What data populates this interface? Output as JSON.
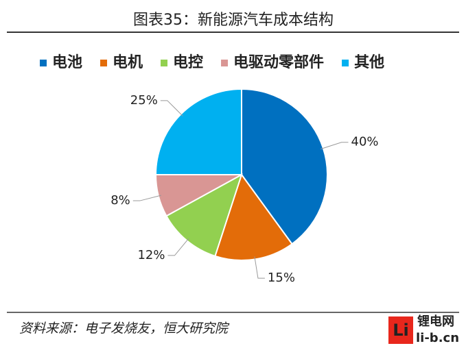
{
  "chart_data": {
    "type": "pie",
    "title": "图表35：新能源汽车成本结构",
    "categories": [
      "电池",
      "电机",
      "电控",
      "电驱动零部件",
      "其他"
    ],
    "values": [
      40,
      15,
      12,
      8,
      25
    ],
    "value_labels": [
      "40%",
      "15%",
      "12%",
      "8%",
      "25%"
    ],
    "colors": [
      "#0070c0",
      "#e36c09",
      "#92d050",
      "#d99694",
      "#00b0f0"
    ],
    "legend": "top",
    "source": "资料来源：电子发烧友，恒大研究院"
  },
  "watermark": {
    "logo": "Li",
    "name": "锂电网",
    "site": "li-b.cn"
  }
}
